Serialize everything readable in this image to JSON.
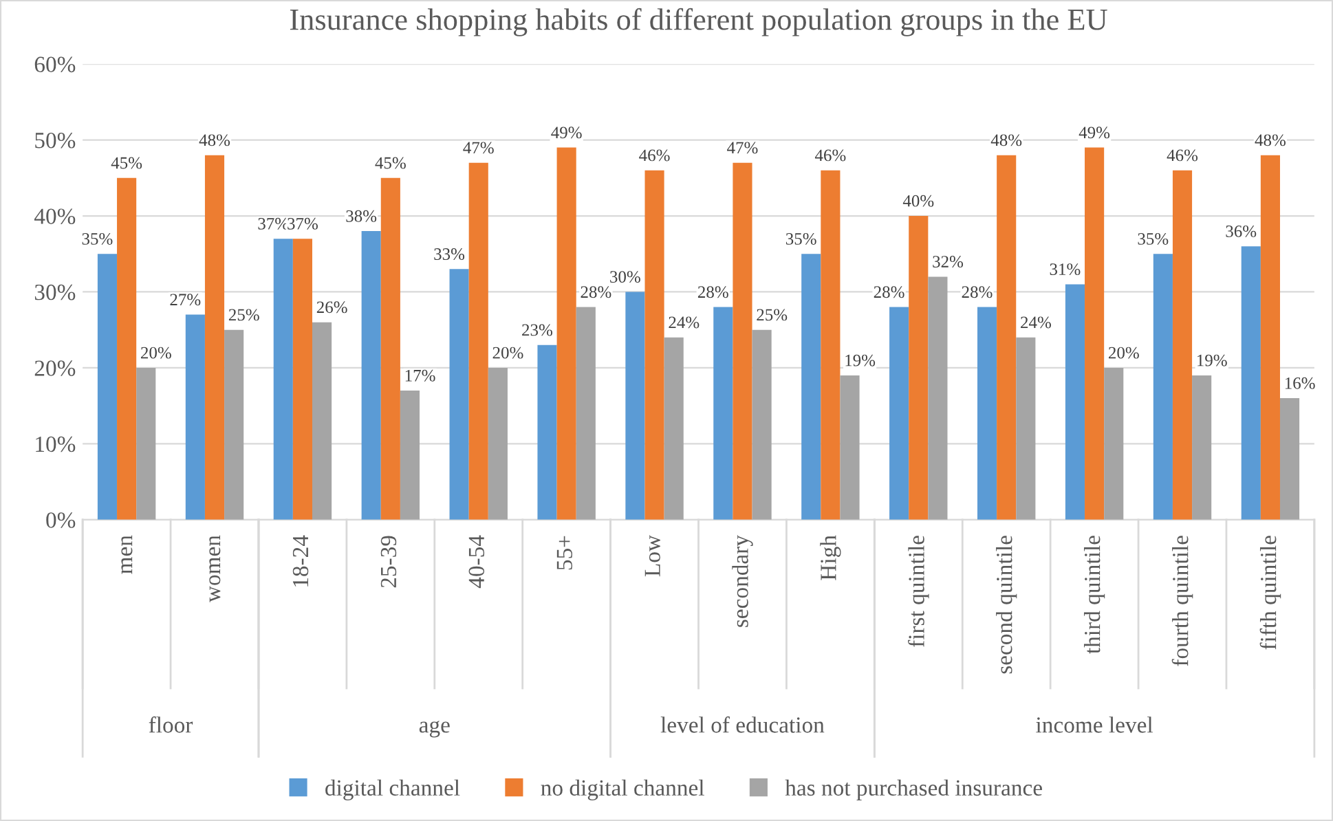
{
  "chart_data": {
    "type": "bar",
    "title": "Insurance shopping habits of different population groups in the EU",
    "categories": [
      "men",
      "women",
      "18-24",
      "25-39",
      "40-54",
      "55+",
      "Low",
      "secondary",
      "High",
      "first quintile",
      "second quintile",
      "third quintile",
      "fourth quintile",
      "fifth quintile"
    ],
    "series": [
      {
        "name": "digital channel",
        "color": "#5b9bd5",
        "values": [
          35,
          27,
          37,
          38,
          33,
          23,
          30,
          28,
          35,
          28,
          28,
          31,
          35,
          36
        ],
        "value_labels": [
          "35%",
          "27%",
          "37%",
          "38%",
          "33%",
          "23%",
          "30%",
          "28%",
          "35%",
          "28%",
          "28%",
          "31%",
          "35%",
          "36%"
        ]
      },
      {
        "name": "no digital channel",
        "color": "#ed7d31",
        "values": [
          45,
          48,
          37,
          45,
          47,
          49,
          46,
          47,
          46,
          40,
          48,
          49,
          46,
          48
        ],
        "value_labels": [
          "45%",
          "48%",
          "37%",
          "45%",
          "47%",
          "49%",
          "46%",
          "47%",
          "46%",
          "40%",
          "48%",
          "49%",
          "46%",
          "48%"
        ]
      },
      {
        "name": "has not purchased insurance",
        "color": "#a5a5a5",
        "values": [
          20,
          25,
          26,
          17,
          20,
          28,
          24,
          25,
          19,
          32,
          24,
          20,
          19,
          16
        ],
        "value_labels": [
          "20%",
          "25%",
          "26%",
          "17%",
          "20%",
          "28%",
          "24%",
          "25%",
          "19%",
          "32%",
          "24%",
          "20%",
          "19%",
          "16%"
        ]
      }
    ],
    "ylim": [
      0,
      60
    ],
    "yticks": [
      {
        "value": 0,
        "label": "0%"
      },
      {
        "value": 10,
        "label": "10%"
      },
      {
        "value": 20,
        "label": "20%"
      },
      {
        "value": 30,
        "label": "30%"
      },
      {
        "value": 40,
        "label": "40%"
      },
      {
        "value": 50,
        "label": "50%"
      },
      {
        "value": 60,
        "label": "60%"
      }
    ],
    "grid": "y",
    "legend": "bottom",
    "annotations": [
      "floor",
      "age",
      "level of education",
      "income level"
    ]
  }
}
